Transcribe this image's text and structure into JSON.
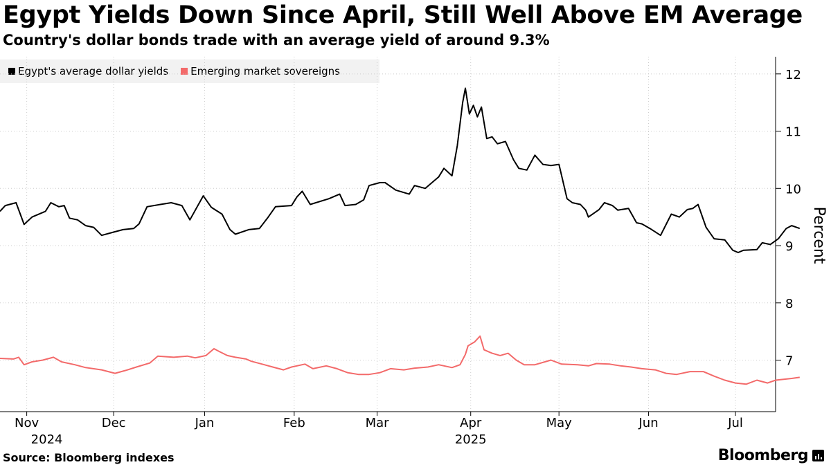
{
  "title": "Egypt Yields Down Since April, Still Well Above EM Average",
  "subtitle": "Country's dollar bonds trade with an average yield of around 9.3%",
  "source": "Source: Bloomberg indexes",
  "brand": "Bloomberg",
  "brand_icon": "bloomberg-logo-icon",
  "colors": {
    "egypt": "#000000",
    "em": "#f36a6a",
    "grid": "#cccccc"
  },
  "chart_data": {
    "type": "line",
    "title": "Egypt Yields Down Since April, Still Well Above EM Average",
    "ylabel": "Percent",
    "ylim": [
      6.1,
      12.3
    ],
    "yticks": [
      7,
      8,
      9,
      10,
      11,
      12
    ],
    "month_ticks": [
      {
        "label": "Nov",
        "x": 1
      },
      {
        "label": "Dec",
        "x": 4.25
      },
      {
        "label": "Jan",
        "x": 7.65
      },
      {
        "label": "Feb",
        "x": 11
      },
      {
        "label": "Mar",
        "x": 14.1
      },
      {
        "label": "Apr",
        "x": 17.6
      },
      {
        "label": "May",
        "x": 20.9
      },
      {
        "label": "Jun",
        "x": 24.25
      },
      {
        "label": "Jul",
        "x": 27.5
      }
    ],
    "year_labels": [
      {
        "label": "2024",
        "x": 1.75
      },
      {
        "label": "2025",
        "x": 17.6
      }
    ],
    "x_unit": "weeks since mid-Oct 2024",
    "xlim": [
      0,
      29
    ],
    "series": [
      {
        "name": "Egypt's average dollar yields",
        "color": "#000000",
        "points": [
          [
            0,
            9.6
          ],
          [
            0.2,
            9.7
          ],
          [
            0.6,
            9.75
          ],
          [
            0.9,
            9.37
          ],
          [
            1.2,
            9.5
          ],
          [
            1.7,
            9.6
          ],
          [
            1.9,
            9.75
          ],
          [
            2.2,
            9.68
          ],
          [
            2.4,
            9.7
          ],
          [
            2.6,
            9.48
          ],
          [
            2.9,
            9.45
          ],
          [
            3.2,
            9.35
          ],
          [
            3.5,
            9.32
          ],
          [
            3.8,
            9.18
          ],
          [
            4.2,
            9.23
          ],
          [
            4.6,
            9.28
          ],
          [
            5.0,
            9.3
          ],
          [
            5.2,
            9.38
          ],
          [
            5.5,
            9.68
          ],
          [
            6.0,
            9.72
          ],
          [
            6.4,
            9.75
          ],
          [
            6.8,
            9.7
          ],
          [
            7.1,
            9.45
          ],
          [
            7.6,
            9.87
          ],
          [
            7.9,
            9.67
          ],
          [
            8.3,
            9.55
          ],
          [
            8.6,
            9.28
          ],
          [
            8.8,
            9.2
          ],
          [
            9.3,
            9.28
          ],
          [
            9.7,
            9.3
          ],
          [
            10.0,
            9.48
          ],
          [
            10.3,
            9.68
          ],
          [
            10.9,
            9.7
          ],
          [
            11.1,
            9.85
          ],
          [
            11.3,
            9.95
          ],
          [
            11.6,
            9.72
          ],
          [
            12.3,
            9.82
          ],
          [
            12.7,
            9.9
          ],
          [
            12.9,
            9.7
          ],
          [
            13.3,
            9.72
          ],
          [
            13.6,
            9.8
          ],
          [
            13.8,
            10.05
          ],
          [
            14.2,
            10.1
          ],
          [
            14.4,
            10.1
          ],
          [
            14.8,
            9.97
          ],
          [
            15.3,
            9.9
          ],
          [
            15.5,
            10.05
          ],
          [
            15.9,
            10.0
          ],
          [
            16.4,
            10.2
          ],
          [
            16.6,
            10.35
          ],
          [
            16.9,
            10.22
          ],
          [
            17.1,
            10.75
          ],
          [
            17.3,
            11.5
          ],
          [
            17.4,
            11.75
          ],
          [
            17.55,
            11.3
          ],
          [
            17.7,
            11.45
          ],
          [
            17.85,
            11.25
          ],
          [
            18.0,
            11.42
          ],
          [
            18.2,
            10.87
          ],
          [
            18.4,
            10.9
          ],
          [
            18.6,
            10.78
          ],
          [
            18.9,
            10.82
          ],
          [
            19.2,
            10.5
          ],
          [
            19.4,
            10.35
          ],
          [
            19.7,
            10.32
          ],
          [
            20.0,
            10.58
          ],
          [
            20.3,
            10.42
          ],
          [
            20.6,
            10.4
          ],
          [
            20.9,
            10.42
          ],
          [
            21.2,
            9.82
          ],
          [
            21.4,
            9.75
          ],
          [
            21.7,
            9.72
          ],
          [
            21.9,
            9.62
          ],
          [
            22.0,
            9.5
          ],
          [
            22.4,
            9.63
          ],
          [
            22.6,
            9.75
          ],
          [
            22.9,
            9.7
          ],
          [
            23.1,
            9.62
          ],
          [
            23.5,
            9.65
          ],
          [
            23.8,
            9.4
          ],
          [
            24.0,
            9.38
          ],
          [
            24.3,
            9.3
          ],
          [
            24.7,
            9.18
          ],
          [
            25.1,
            9.55
          ],
          [
            25.4,
            9.5
          ],
          [
            25.7,
            9.63
          ],
          [
            25.9,
            9.65
          ],
          [
            26.1,
            9.72
          ],
          [
            26.4,
            9.32
          ],
          [
            26.7,
            9.12
          ],
          [
            27.1,
            9.1
          ],
          [
            27.4,
            8.92
          ],
          [
            27.6,
            8.88
          ],
          [
            27.8,
            8.92
          ],
          [
            28.3,
            8.93
          ],
          [
            28.5,
            9.05
          ],
          [
            28.8,
            9.02
          ],
          [
            29.1,
            9.12
          ],
          [
            29.4,
            9.3
          ],
          [
            29.6,
            9.35
          ],
          [
            29.9,
            9.3
          ]
        ]
      },
      {
        "name": "Emerging market sovereigns",
        "color": "#f36a6a",
        "points": [
          [
            0,
            7.03
          ],
          [
            0.5,
            7.02
          ],
          [
            0.7,
            7.05
          ],
          [
            0.9,
            6.92
          ],
          [
            1.2,
            6.97
          ],
          [
            1.6,
            7.0
          ],
          [
            2.0,
            7.05
          ],
          [
            2.3,
            6.97
          ],
          [
            2.8,
            6.92
          ],
          [
            3.2,
            6.87
          ],
          [
            3.8,
            6.83
          ],
          [
            4.3,
            6.77
          ],
          [
            4.7,
            6.82
          ],
          [
            5.1,
            6.88
          ],
          [
            5.6,
            6.95
          ],
          [
            5.9,
            7.07
          ],
          [
            6.5,
            7.05
          ],
          [
            7.0,
            7.07
          ],
          [
            7.3,
            7.04
          ],
          [
            7.7,
            7.08
          ],
          [
            8.0,
            7.2
          ],
          [
            8.2,
            7.15
          ],
          [
            8.5,
            7.08
          ],
          [
            8.8,
            7.05
          ],
          [
            9.2,
            7.02
          ],
          [
            9.4,
            6.98
          ],
          [
            9.8,
            6.93
          ],
          [
            10.2,
            6.88
          ],
          [
            10.6,
            6.83
          ],
          [
            10.9,
            6.88
          ],
          [
            11.4,
            6.93
          ],
          [
            11.7,
            6.85
          ],
          [
            12.2,
            6.9
          ],
          [
            12.6,
            6.85
          ],
          [
            13.0,
            6.78
          ],
          [
            13.4,
            6.75
          ],
          [
            13.8,
            6.75
          ],
          [
            14.2,
            6.78
          ],
          [
            14.6,
            6.85
          ],
          [
            15.1,
            6.83
          ],
          [
            15.5,
            6.86
          ],
          [
            16.0,
            6.88
          ],
          [
            16.4,
            6.92
          ],
          [
            16.9,
            6.87
          ],
          [
            17.2,
            6.92
          ],
          [
            17.4,
            7.1
          ],
          [
            17.5,
            7.25
          ],
          [
            17.75,
            7.32
          ],
          [
            17.95,
            7.42
          ],
          [
            18.1,
            7.18
          ],
          [
            18.4,
            7.12
          ],
          [
            18.7,
            7.08
          ],
          [
            19.0,
            7.12
          ],
          [
            19.3,
            7.0
          ],
          [
            19.6,
            6.92
          ],
          [
            20.0,
            6.92
          ],
          [
            20.6,
            7.0
          ],
          [
            21.0,
            6.93
          ],
          [
            21.6,
            6.92
          ],
          [
            22.0,
            6.9
          ],
          [
            22.3,
            6.94
          ],
          [
            22.8,
            6.93
          ],
          [
            23.2,
            6.9
          ],
          [
            23.6,
            6.88
          ],
          [
            24.0,
            6.85
          ],
          [
            24.5,
            6.83
          ],
          [
            24.9,
            6.77
          ],
          [
            25.3,
            6.75
          ],
          [
            25.8,
            6.8
          ],
          [
            26.3,
            6.8
          ],
          [
            26.7,
            6.72
          ],
          [
            27.1,
            6.65
          ],
          [
            27.5,
            6.6
          ],
          [
            27.9,
            6.58
          ],
          [
            28.3,
            6.65
          ],
          [
            28.7,
            6.6
          ],
          [
            29.0,
            6.65
          ],
          [
            29.6,
            6.68
          ],
          [
            29.9,
            6.7
          ]
        ]
      }
    ]
  }
}
